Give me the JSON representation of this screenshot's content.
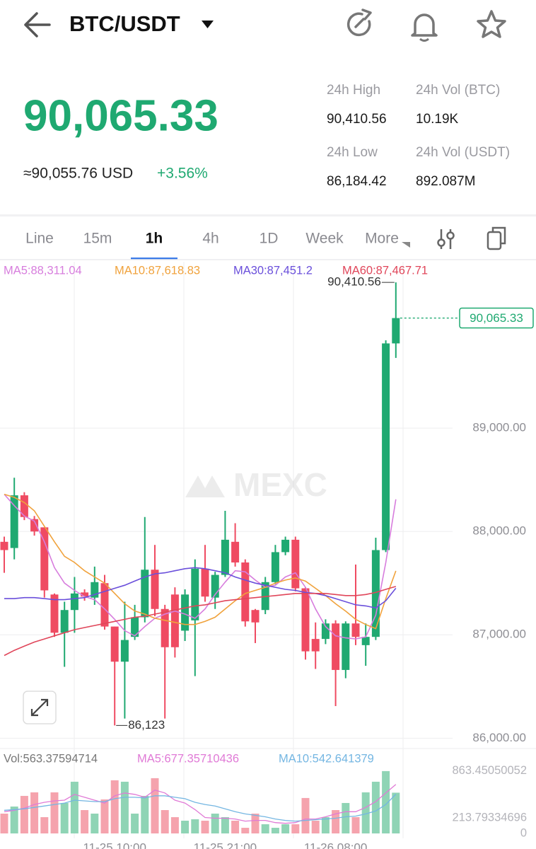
{
  "header": {
    "pair": "BTC/USDT"
  },
  "ticker": {
    "price": "90,065.33",
    "approx": "≈90,055.76 USD",
    "change": "+3.56%",
    "stats": [
      {
        "label": "24h High",
        "value": "90,410.56"
      },
      {
        "label": "24h Vol (BTC)",
        "value": "10.19K"
      },
      {
        "label": "24h Low",
        "value": "86,184.42"
      },
      {
        "label": "24h Vol  (USDT)",
        "value": "892.087M"
      }
    ]
  },
  "tabs": {
    "items": [
      "Line",
      "15m",
      "1h",
      "4h",
      "1D",
      "Week",
      "More"
    ],
    "active": 2
  },
  "watermark": "MEXC",
  "chart_data": {
    "type": "candlestick",
    "up_color": "#1fa971",
    "down_color": "#ef4b62",
    "categories": [
      null,
      null,
      null,
      null,
      null,
      null,
      null,
      null,
      null,
      null,
      null,
      "11-25 10:00",
      null,
      null,
      null,
      null,
      null,
      null,
      null,
      null,
      null,
      null,
      "11-25 21:00",
      null,
      null,
      null,
      null,
      null,
      null,
      null,
      null,
      null,
      null,
      "11-26 08:00",
      null,
      null,
      null,
      null,
      null,
      null
    ],
    "open": [
      87900,
      87840,
      88350,
      88120,
      88040,
      87390,
      87020,
      87240,
      87410,
      87360,
      87500,
      87080,
      86740,
      86980,
      87170,
      87630,
      87250,
      87390,
      87040,
      87140,
      87640,
      87360,
      87580,
      87900,
      87700,
      87240,
      87240,
      87510,
      87800,
      87920,
      87450,
      86960,
      86960,
      87110,
      86660,
      87110,
      86900,
      86980,
      87820,
      89820
    ],
    "high": [
      87950,
      88520,
      88380,
      88150,
      88040,
      87400,
      87320,
      87560,
      87440,
      87660,
      87580,
      87080,
      87320,
      87290,
      88140,
      87870,
      87290,
      87460,
      87440,
      87730,
      87870,
      87610,
      88200,
      88080,
      87730,
      87250,
      87560,
      87870,
      87950,
      87950,
      87460,
      87120,
      87150,
      87140,
      87130,
      87680,
      87110,
      87940,
      89850,
      90410.56
    ],
    "low": [
      87600,
      87730,
      88110,
      87960,
      87360,
      86980,
      86690,
      87020,
      87330,
      87290,
      87050,
      86123,
      86190,
      86950,
      87120,
      87180,
      86190,
      86780,
      86940,
      86600,
      87320,
      87250,
      87560,
      87660,
      87080,
      86920,
      87200,
      87490,
      87770,
      87420,
      86760,
      86670,
      86910,
      86310,
      86580,
      86900,
      86700,
      86950,
      87800,
      89680
    ],
    "close": [
      87820,
      88350,
      88140,
      88000,
      87430,
      87020,
      87240,
      87400,
      87370,
      87510,
      87080,
      86740,
      86950,
      87170,
      87630,
      87250,
      86880,
      86880,
      87390,
      87640,
      87370,
      87580,
      87920,
      87700,
      87130,
      87120,
      87510,
      87800,
      87920,
      87450,
      86840,
      86840,
      87110,
      86660,
      87110,
      86980,
      86980,
      87820,
      89820,
      90065.33
    ],
    "ma": [
      {
        "label": "MA5:88,311.04",
        "color": "#d77ddd",
        "values": [
          88360,
          88250,
          88150,
          88100,
          87900,
          87650,
          87500,
          87430,
          87370,
          87340,
          87250,
          87150,
          87040,
          86990,
          87080,
          87160,
          87200,
          87230,
          87200,
          87160,
          87250,
          87390,
          87510,
          87620,
          87610,
          87530,
          87460,
          87480,
          87560,
          87600,
          87460,
          87250,
          87080,
          86990,
          86970,
          86960,
          86980,
          87190,
          87700,
          88311.04
        ]
      },
      {
        "label": "MA10:87,618.83",
        "color": "#f0a23c",
        "values": [
          88360,
          88330,
          88280,
          88200,
          88050,
          87900,
          87760,
          87700,
          87620,
          87560,
          87500,
          87400,
          87300,
          87230,
          87200,
          87160,
          87140,
          87120,
          87100,
          87100,
          87130,
          87170,
          87250,
          87330,
          87400,
          87430,
          87460,
          87500,
          87530,
          87550,
          87520,
          87450,
          87380,
          87300,
          87230,
          87150,
          87100,
          87060,
          87350,
          87618.83
        ]
      },
      {
        "label": "MA30:87,451.2",
        "color": "#6a4fdb",
        "values": [
          87350,
          87350,
          87360,
          87360,
          87350,
          87340,
          87340,
          87350,
          87360,
          87390,
          87420,
          87450,
          87480,
          87520,
          87560,
          87590,
          87600,
          87620,
          87640,
          87650,
          87640,
          87620,
          87600,
          87560,
          87530,
          87500,
          87480,
          87460,
          87440,
          87430,
          87410,
          87400,
          87380,
          87350,
          87320,
          87290,
          87280,
          87260,
          87330,
          87451.2
        ]
      },
      {
        "label": "MA60:87,467.71",
        "color": "#e0465a",
        "values": [
          86800,
          86850,
          86890,
          86930,
          86960,
          86990,
          87020,
          87050,
          87070,
          87090,
          87110,
          87130,
          87150,
          87170,
          87180,
          87200,
          87220,
          87240,
          87260,
          87280,
          87290,
          87310,
          87330,
          87340,
          87350,
          87360,
          87370,
          87380,
          87390,
          87400,
          87400,
          87400,
          87400,
          87390,
          87380,
          87380,
          87390,
          87410,
          87440,
          87467.71
        ]
      }
    ],
    "ylim": [
      85920,
      90610
    ],
    "yticks": [
      {
        "value": 86000,
        "label": "86,000.00"
      },
      {
        "value": 87000,
        "label": "87,000.00"
      },
      {
        "value": 88000,
        "label": "88,000.00"
      },
      {
        "value": 89000,
        "label": "89,000.00"
      }
    ],
    "high_marker": {
      "value": 90410.56,
      "label": "90,410.56"
    },
    "low_marker": {
      "value": 86123,
      "label": "86,123"
    },
    "last_price": {
      "value": 90065.33,
      "label": "90,065.33"
    },
    "volume": {
      "label": "Vol:563.37594714",
      "values": [
        274,
        372,
        519,
        568,
        225,
        568,
        421,
        715,
        323,
        274,
        470,
        735,
        715,
        274,
        519,
        764,
        323,
        225,
        176,
        196,
        176,
        274,
        225,
        176,
        78,
        274,
        127,
        78,
        127,
        127,
        490,
        176,
        225,
        323,
        421,
        225,
        568,
        715,
        862,
        563.37594714
      ],
      "ma": [
        {
          "label": "MA5:677.35710436",
          "color": "#e07ad6",
          "values": [
            300,
            320,
            350,
            400,
            430,
            450,
            460,
            540,
            500,
            460,
            420,
            520,
            560,
            540,
            500,
            600,
            560,
            460,
            420,
            330,
            220,
            210,
            210,
            200,
            170,
            180,
            180,
            150,
            140,
            150,
            200,
            200,
            230,
            270,
            300,
            300,
            360,
            440,
            560,
            677.35710436
          ]
        },
        {
          "label": "MA10:542.641379",
          "color": "#74b6e2",
          "values": [
            320,
            330,
            340,
            360,
            380,
            400,
            420,
            460,
            450,
            440,
            440,
            480,
            500,
            500,
            490,
            520,
            520,
            500,
            480,
            430,
            400,
            380,
            340,
            300,
            270,
            250,
            230,
            200,
            180,
            170,
            180,
            190,
            200,
            210,
            230,
            240,
            270,
            310,
            400,
            542.641379
          ]
        }
      ],
      "ylim": [
        0,
        900
      ],
      "yticks": [
        863.45050052,
        213.79334696,
        0
      ]
    }
  }
}
